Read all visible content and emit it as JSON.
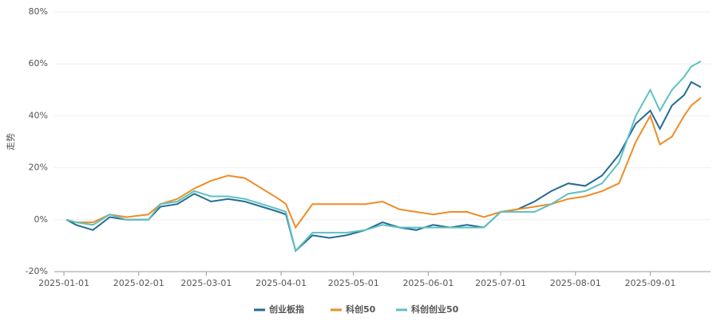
{
  "chart_data": {
    "type": "line",
    "y_label": "走势",
    "x": [
      "2025-01-02",
      "2025-01-06",
      "2025-01-13",
      "2025-01-20",
      "2025-01-27",
      "2025-02-05",
      "2025-02-10",
      "2025-02-17",
      "2025-02-24",
      "2025-03-03",
      "2025-03-10",
      "2025-03-17",
      "2025-03-24",
      "2025-03-31",
      "2025-04-03",
      "2025-04-07",
      "2025-04-14",
      "2025-04-21",
      "2025-04-28",
      "2025-05-06",
      "2025-05-13",
      "2025-05-20",
      "2025-05-27",
      "2025-06-03",
      "2025-06-10",
      "2025-06-17",
      "2025-06-24",
      "2025-07-01",
      "2025-07-08",
      "2025-07-15",
      "2025-07-22",
      "2025-07-29",
      "2025-08-05",
      "2025-08-12",
      "2025-08-19",
      "2025-08-26",
      "2025-09-01",
      "2025-09-05",
      "2025-09-10",
      "2025-09-15",
      "2025-09-18",
      "2025-09-22"
    ],
    "series": [
      {
        "name": "创业板指",
        "color": "#256c93",
        "values": [
          0,
          -2,
          -4,
          1,
          0,
          0,
          5,
          6,
          10,
          7,
          8,
          7,
          5,
          3,
          2,
          -12,
          -6,
          -7,
          -6,
          -4,
          -1,
          -3,
          -4,
          -2,
          -3,
          -2,
          -3,
          3,
          4,
          7,
          11,
          14,
          13,
          17,
          25,
          37,
          42,
          35,
          44,
          48,
          53,
          51
        ]
      },
      {
        "name": "科创50",
        "color": "#ef8c26",
        "values": [
          0,
          -1,
          -1,
          2,
          1,
          2,
          6,
          8,
          12,
          15,
          17,
          16,
          12,
          8,
          6,
          -3,
          6,
          6,
          6,
          6,
          7,
          4,
          3,
          2,
          3,
          3,
          1,
          3,
          4,
          5,
          6,
          8,
          9,
          11,
          14,
          30,
          40,
          29,
          32,
          40,
          44,
          47
        ]
      },
      {
        "name": "科创创业50",
        "color": "#5dc1c1",
        "values": [
          0,
          -1,
          -2,
          2,
          0,
          0,
          6,
          7,
          11,
          9,
          9,
          8,
          6,
          4,
          3,
          -12,
          -5,
          -5,
          -5,
          -4,
          -2,
          -3,
          -3,
          -3,
          -3,
          -3,
          -3,
          3,
          3,
          3,
          6,
          10,
          11,
          14,
          22,
          40,
          50,
          42,
          50,
          55,
          59,
          61
        ]
      }
    ],
    "xlim": [
      "2024-12-28",
      "2025-09-26"
    ],
    "xticks": [
      "2025-01-01",
      "2025-02-01",
      "2025-03-01",
      "2025-04-01",
      "2025-05-01",
      "2025-06-01",
      "2025-07-01",
      "2025-08-01",
      "2025-09-01"
    ],
    "ylim": [
      -20,
      80
    ],
    "yticks": [
      {
        "value": -20,
        "label": "-20%"
      },
      {
        "value": 0,
        "label": "0%"
      },
      {
        "value": 20,
        "label": "20%"
      },
      {
        "value": 40,
        "label": "40%"
      },
      {
        "value": 60,
        "label": "60%"
      },
      {
        "value": 80,
        "label": "80%"
      }
    ],
    "grid": true
  }
}
